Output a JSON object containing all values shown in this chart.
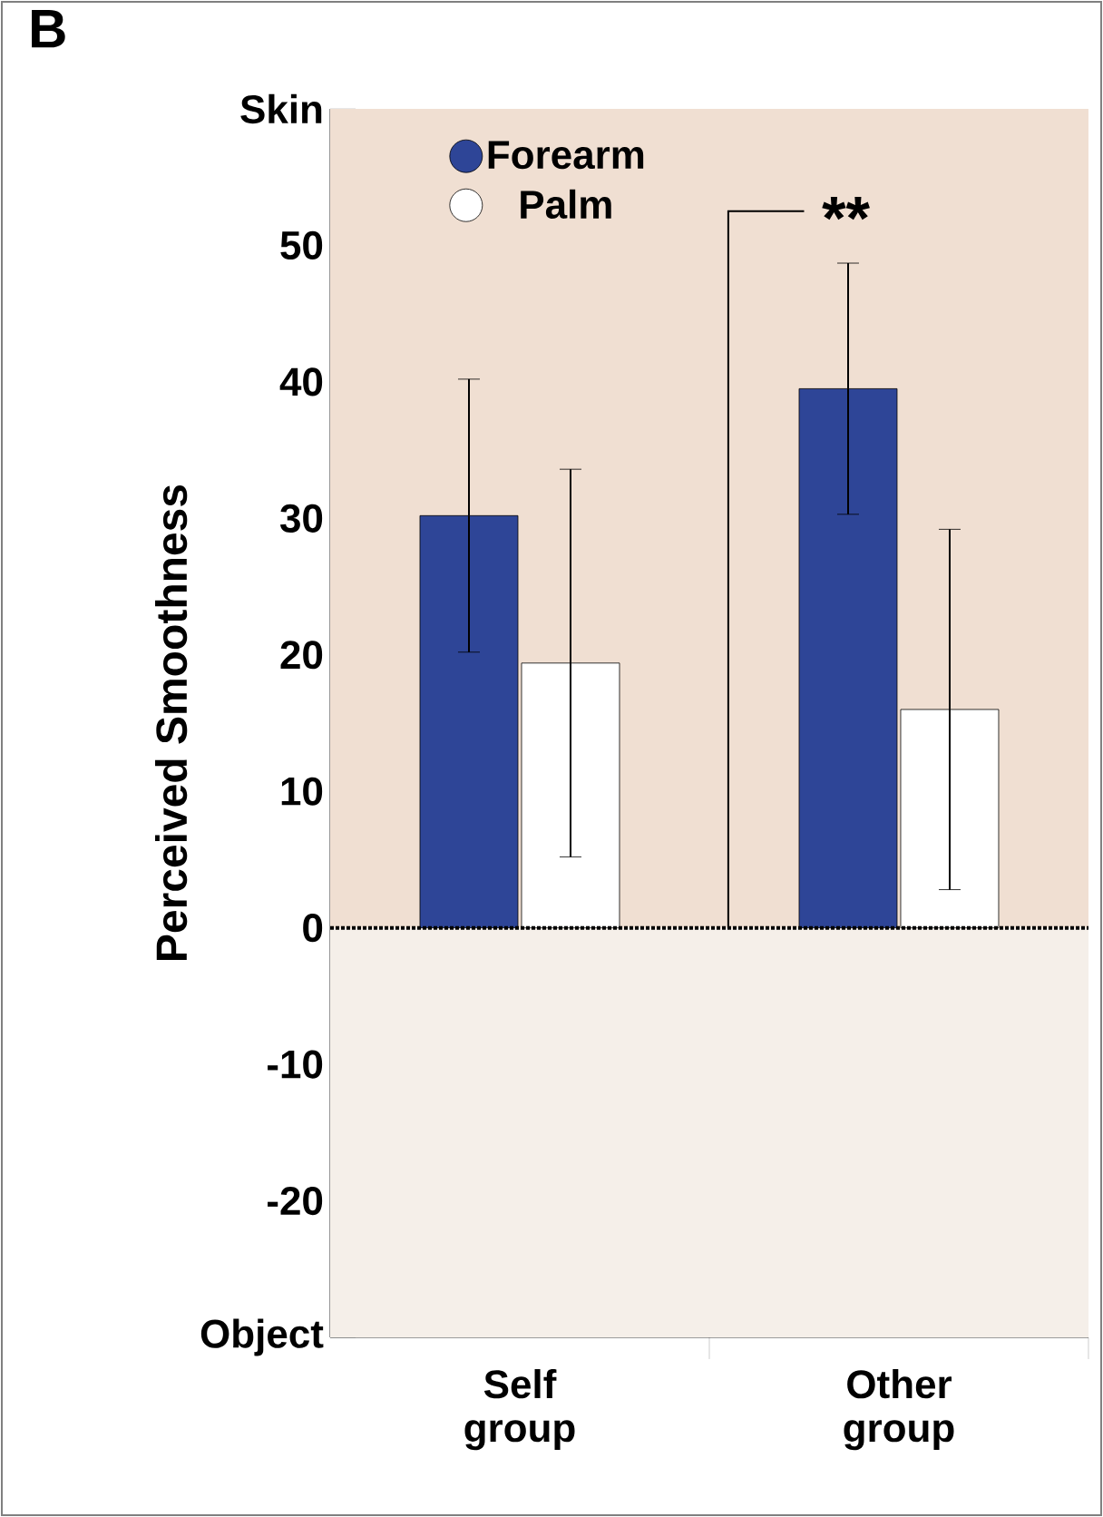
{
  "chart_data": {
    "type": "bar",
    "categories": [
      "Self group",
      "Other group"
    ],
    "ylabel": "Perceived Smoothness",
    "series": [
      {
        "name": "Forearm",
        "color": "#2e4597",
        "values": [
          30.2,
          39.5
        ],
        "errors": [
          10,
          9.2
        ]
      },
      {
        "name": "Palm",
        "color": "#ffffff",
        "values": [
          19.4,
          16
        ],
        "errors": [
          14.2,
          13.2
        ]
      }
    ],
    "ylim": [
      -30,
      60
    ],
    "yticks": [
      {
        "value": -30,
        "label": "Object"
      },
      -20,
      -10,
      0,
      10,
      20,
      30,
      40,
      50,
      {
        "value": 60,
        "label": "Skin"
      }
    ],
    "bands": [
      {
        "axis": "y",
        "from": 0,
        "to": 60,
        "color": "#f0dfd2"
      },
      {
        "axis": "y",
        "from": -30,
        "to": 0,
        "color": "#f5efe9"
      }
    ],
    "ref_lines": [
      {
        "axis": "y",
        "value": 0,
        "line_style": "dotted"
      }
    ],
    "annotations": [
      "B",
      "**"
    ],
    "legend": "top left",
    "marker": "circle"
  }
}
